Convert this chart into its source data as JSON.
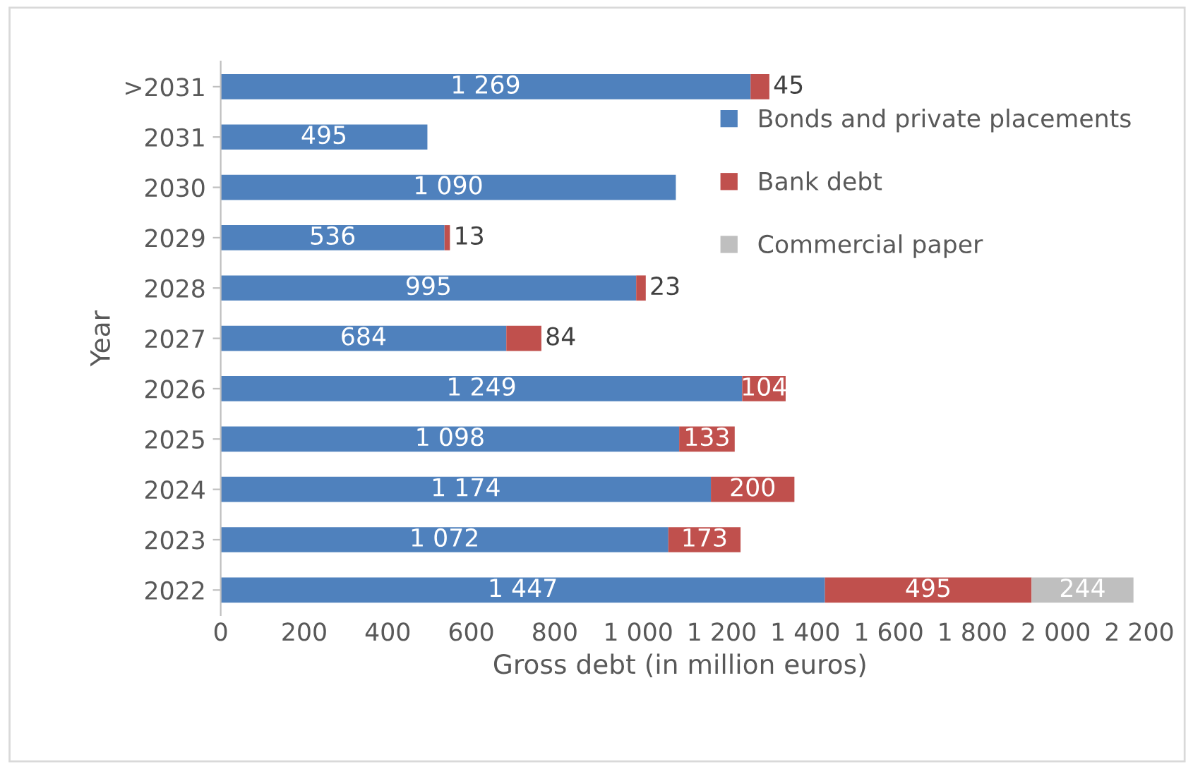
{
  "chart_data": {
    "type": "bar",
    "orientation": "horizontal",
    "stacked": true,
    "xlabel": "Gross debt (in million euros)",
    "ylabel": "Year",
    "categories": [
      ">2031",
      "2031",
      "2030",
      "2029",
      "2028",
      "2027",
      "2026",
      "2025",
      "2024",
      "2023",
      "2022"
    ],
    "series": [
      {
        "name": "Bonds and private placements",
        "color": "#4f81bd",
        "values": [
          1269,
          495,
          1090,
          536,
          995,
          684,
          1249,
          1098,
          1174,
          1072,
          1447
        ],
        "value_labels": [
          "1 269",
          "495",
          "1 090",
          "536",
          "995",
          "684",
          "1 249",
          "1 098",
          "1 174",
          "1 072",
          "1 447"
        ]
      },
      {
        "name": "Bank debt",
        "color": "#c0504d",
        "values": [
          45,
          null,
          null,
          13,
          23,
          84,
          104,
          133,
          200,
          173,
          495
        ],
        "value_labels": [
          "45",
          null,
          null,
          "13",
          "23",
          "84",
          "104",
          "133",
          "200",
          "173",
          "495"
        ]
      },
      {
        "name": "Commercial paper",
        "color": "#bfbfbf",
        "values": [
          null,
          null,
          null,
          null,
          null,
          null,
          null,
          null,
          null,
          null,
          244
        ],
        "value_labels": [
          null,
          null,
          null,
          null,
          null,
          null,
          null,
          null,
          null,
          null,
          "244"
        ]
      }
    ],
    "xlim": [
      0,
      2200
    ],
    "xticks": [
      0,
      200,
      400,
      600,
      800,
      {
        "value": 1000,
        "label": "1 000"
      },
      {
        "value": 1200,
        "label": "1 200"
      },
      {
        "value": 1400,
        "label": "1 400"
      },
      {
        "value": 1600,
        "label": "1 600"
      },
      {
        "value": 1800,
        "label": "1 800"
      },
      {
        "value": 2000,
        "label": "2 000"
      },
      {
        "value": 2200,
        "label": "2 200"
      }
    ],
    "legend": "right",
    "grid": false
  }
}
